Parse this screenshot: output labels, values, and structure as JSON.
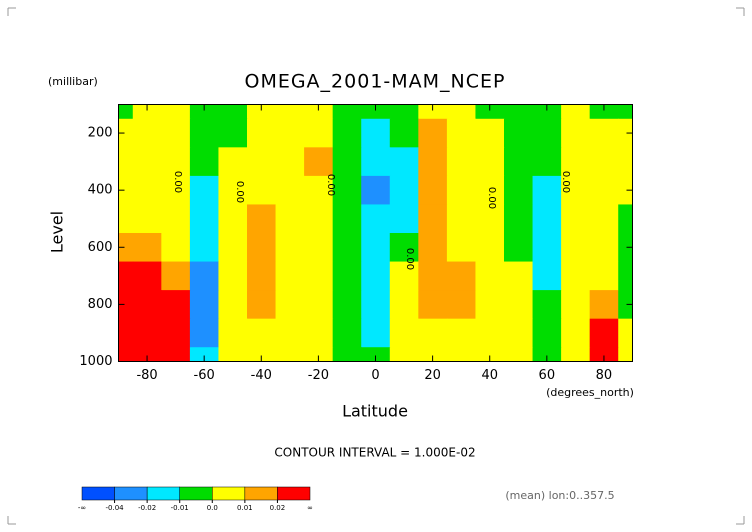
{
  "chart_data": {
    "type": "contour",
    "title": "OMEGA_2001-MAM_NCEP",
    "y_unit_label": "(millibar)",
    "ylabel": "Level",
    "xlabel": "Latitude",
    "x_unit_label": "(degrees_north)",
    "footnote": "CONTOUR INTERVAL = 1.000E-02",
    "note": "(mean) lon:0..357.5",
    "contour_labels": [
      "0.00",
      "0.00",
      "0.00",
      "0.00",
      "0.00",
      "0.00"
    ],
    "x": [
      -90,
      -80,
      -70,
      -60,
      -50,
      -40,
      -30,
      -20,
      -10,
      0,
      10,
      20,
      30,
      40,
      50,
      60,
      70,
      80,
      90
    ],
    "y": [
      100,
      200,
      300,
      400,
      500,
      600,
      700,
      800,
      900,
      1000
    ],
    "z": [
      [
        -0.004,
        0.002,
        0.003,
        -0.005,
        -0.004,
        0.002,
        0.003,
        0.004,
        -0.004,
        -0.005,
        -0.004,
        0.002,
        0.002,
        -0.003,
        -0.004,
        -0.003,
        0.002,
        -0.003,
        -0.004
      ],
      [
        0.003,
        0.005,
        0.003,
        -0.005,
        -0.002,
        0.003,
        0.004,
        0.008,
        -0.006,
        -0.012,
        -0.01,
        0.012,
        0.004,
        0.003,
        -0.006,
        -0.004,
        0.004,
        0.003,
        0.002
      ],
      [
        0.003,
        0.005,
        0.003,
        -0.008,
        0.004,
        0.004,
        0.005,
        0.011,
        -0.008,
        -0.02,
        -0.012,
        0.015,
        0.004,
        0.004,
        -0.006,
        -0.006,
        0.004,
        0.004,
        0.002
      ],
      [
        0.003,
        0.005,
        0.003,
        -0.012,
        0.004,
        0.006,
        0.006,
        0.009,
        -0.009,
        -0.025,
        -0.015,
        0.016,
        0.004,
        0.004,
        -0.005,
        -0.011,
        0.004,
        0.004,
        0.002
      ],
      [
        0.004,
        0.008,
        0.005,
        -0.015,
        0.004,
        0.01,
        0.008,
        0.005,
        -0.008,
        -0.02,
        -0.012,
        0.015,
        0.005,
        0.004,
        -0.004,
        -0.012,
        0.004,
        0.004,
        -0.003
      ],
      [
        0.012,
        0.015,
        0.005,
        -0.018,
        0.004,
        0.012,
        0.008,
        0.003,
        -0.007,
        -0.015,
        -0.008,
        0.013,
        0.006,
        0.004,
        -0.003,
        -0.013,
        0.004,
        0.005,
        -0.003
      ],
      [
        0.03,
        0.03,
        0.015,
        -0.025,
        0.004,
        0.012,
        0.007,
        0.003,
        -0.006,
        -0.013,
        0.002,
        0.012,
        0.011,
        0.004,
        0.002,
        -0.012,
        0.004,
        0.008,
        -0.004
      ],
      [
        0.04,
        0.04,
        0.02,
        -0.03,
        0.004,
        0.011,
        0.005,
        0.003,
        -0.005,
        -0.012,
        0.003,
        0.011,
        0.012,
        0.004,
        0.003,
        -0.008,
        0.004,
        0.013,
        -0.003
      ],
      [
        0.05,
        0.05,
        0.025,
        -0.025,
        0.004,
        0.005,
        0.004,
        0.003,
        -0.004,
        -0.012,
        0.003,
        0.006,
        0.005,
        0.003,
        0.002,
        -0.004,
        0.004,
        0.02,
        0.002
      ],
      [
        0.05,
        0.06,
        0.02,
        -0.015,
        0.004,
        0.003,
        0.003,
        0.003,
        -0.003,
        -0.008,
        0.002,
        0.004,
        0.004,
        0.003,
        0.002,
        -0.002,
        0.004,
        0.03,
        0.003
      ]
    ],
    "xlim": [
      -90,
      90
    ],
    "ylim": [
      1000,
      100
    ],
    "xticks": [
      -80,
      -60,
      -40,
      -20,
      0,
      20,
      40,
      60,
      80
    ],
    "yticks": [
      200,
      400,
      600,
      800,
      1000
    ],
    "colorbar": {
      "low_label": "-∞",
      "high_label": "∞",
      "ticks": [
        -0.04,
        -0.02,
        -0.01,
        {
          "value": 0,
          "label": "0.0"
        },
        0.01,
        0.02
      ],
      "colors": [
        "#0050ff",
        "#1e90ff",
        "#00e8ff",
        "#00dd00",
        "#ffff00",
        "#ffa500",
        "#ff0000"
      ]
    }
  }
}
